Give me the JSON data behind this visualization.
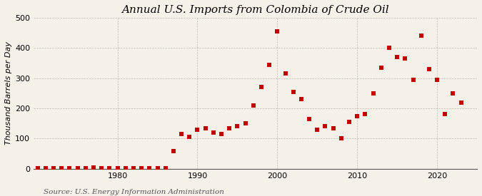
{
  "years": [
    1970,
    1971,
    1972,
    1973,
    1974,
    1975,
    1976,
    1977,
    1978,
    1979,
    1980,
    1981,
    1982,
    1983,
    1984,
    1985,
    1986,
    1987,
    1988,
    1989,
    1990,
    1991,
    1992,
    1993,
    1994,
    1995,
    1996,
    1997,
    1998,
    1999,
    2000,
    2001,
    2002,
    2003,
    2004,
    2005,
    2006,
    2007,
    2008,
    2009,
    2010,
    2011,
    2012,
    2013,
    2014,
    2015,
    2016,
    2017,
    2018,
    2019,
    2020,
    2021,
    2022,
    2023
  ],
  "values": [
    2,
    2,
    2,
    2,
    2,
    2,
    2,
    5,
    2,
    2,
    2,
    2,
    2,
    2,
    2,
    2,
    2,
    58,
    115,
    105,
    130,
    135,
    120,
    115,
    135,
    140,
    150,
    210,
    270,
    345,
    455,
    315,
    255,
    230,
    165,
    130,
    140,
    135,
    100,
    155,
    175,
    180,
    250,
    335,
    400,
    370,
    365,
    295,
    440,
    330,
    295,
    180,
    250,
    220
  ],
  "title": "Annual U.S. Imports from Colombia of Crude Oil",
  "ylabel": "Thousand Barrels per Day",
  "source": "Source: U.S. Energy Information Administration",
  "ylim": [
    0,
    500
  ],
  "yticks": [
    0,
    100,
    200,
    300,
    400,
    500
  ],
  "xlim": [
    1969.5,
    2025
  ],
  "xticks": [
    1980,
    1990,
    2000,
    2010,
    2020
  ],
  "marker_color": "#c00000",
  "marker_size": 4,
  "bg_color": "#f5f0e8",
  "grid_color": "#999999",
  "title_fontsize": 11,
  "label_fontsize": 8,
  "tick_fontsize": 8,
  "source_fontsize": 7.5
}
